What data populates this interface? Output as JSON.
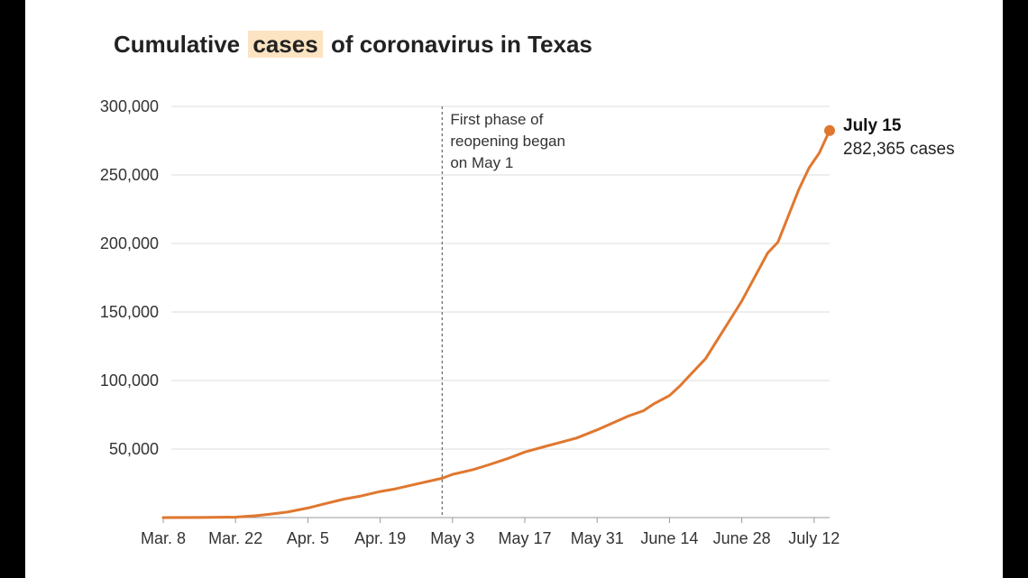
{
  "title": {
    "prefix": "Cumulative",
    "highlight": "cases",
    "suffix": "of coronavirus in Texas"
  },
  "colors": {
    "line": "#e0772f",
    "highlight": "#fce3c2",
    "grid": "#dddddd",
    "text": "#333333"
  },
  "chart_data": {
    "type": "line",
    "title": "Cumulative cases of coronavirus in Texas",
    "xlabel": "",
    "ylabel": "",
    "x_tick_labels": [
      "Mar. 8",
      "Mar. 22",
      "Apr. 5",
      "Apr. 19",
      "May 3",
      "May 17",
      "May 31",
      "June 14",
      "June 28",
      "July 12"
    ],
    "x_tick_dates": [
      "2020-03-08",
      "2020-03-22",
      "2020-04-05",
      "2020-04-19",
      "2020-05-03",
      "2020-05-17",
      "2020-05-31",
      "2020-06-14",
      "2020-06-28",
      "2020-07-12"
    ],
    "xlim": [
      "2020-03-08",
      "2020-07-15"
    ],
    "ylim": [
      0,
      300000
    ],
    "y_ticks": [
      50000,
      100000,
      150000,
      200000,
      250000,
      300000
    ],
    "y_tick_labels": [
      "50,000",
      "100,000",
      "150,000",
      "200,000",
      "250,000",
      "300,000"
    ],
    "grid": "horizontal",
    "series": [
      {
        "points": [
          [
            "2020-03-04",
            1
          ],
          [
            "2020-03-08",
            10
          ],
          [
            "2020-03-15",
            60
          ],
          [
            "2020-03-22",
            350
          ],
          [
            "2020-03-26",
            1400
          ],
          [
            "2020-03-29",
            2600
          ],
          [
            "2020-04-01",
            4000
          ],
          [
            "2020-04-05",
            7000
          ],
          [
            "2020-04-08",
            9800
          ],
          [
            "2020-04-12",
            13500
          ],
          [
            "2020-04-15",
            15500
          ],
          [
            "2020-04-19",
            19000
          ],
          [
            "2020-04-22",
            21000
          ],
          [
            "2020-04-26",
            24500
          ],
          [
            "2020-05-01",
            28700
          ],
          [
            "2020-05-03",
            31500
          ],
          [
            "2020-05-07",
            35000
          ],
          [
            "2020-05-10",
            38500
          ],
          [
            "2020-05-14",
            43500
          ],
          [
            "2020-05-17",
            47800
          ],
          [
            "2020-05-21",
            52000
          ],
          [
            "2020-05-24",
            55000
          ],
          [
            "2020-05-27",
            58000
          ],
          [
            "2020-05-31",
            64000
          ],
          [
            "2020-06-03",
            69000
          ],
          [
            "2020-06-06",
            74000
          ],
          [
            "2020-06-09",
            78000
          ],
          [
            "2020-06-11",
            83000
          ],
          [
            "2020-06-14",
            89000
          ],
          [
            "2020-06-16",
            96000
          ],
          [
            "2020-06-18",
            104000
          ],
          [
            "2020-06-21",
            116000
          ],
          [
            "2020-06-24",
            134000
          ],
          [
            "2020-06-27",
            152000
          ],
          [
            "2020-06-28",
            158000
          ],
          [
            "2020-07-01",
            179000
          ],
          [
            "2020-07-03",
            193000
          ],
          [
            "2020-07-05",
            201000
          ],
          [
            "2020-07-07",
            220000
          ],
          [
            "2020-07-09",
            239000
          ],
          [
            "2020-07-11",
            255000
          ],
          [
            "2020-07-13",
            266000
          ],
          [
            "2020-07-15",
            282365
          ]
        ]
      }
    ],
    "annotations": [
      {
        "type": "vline",
        "x": "2020-05-01",
        "lines": [
          "First phase of",
          "reopening began",
          "on May 1"
        ]
      },
      {
        "type": "endpoint",
        "x": "2020-07-15",
        "y": 282365,
        "date_label": "July 15",
        "value_label": "282,365 cases"
      }
    ]
  }
}
